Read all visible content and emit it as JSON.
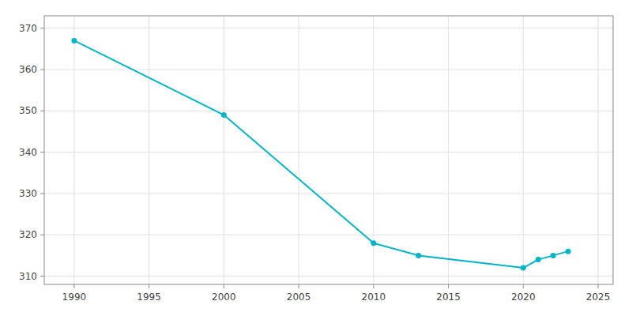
{
  "chart_data": {
    "type": "line",
    "x": [
      1990,
      2000,
      2010,
      2013,
      2020,
      2021,
      2022,
      2023
    ],
    "values": [
      367,
      349,
      318,
      315,
      312,
      314,
      315,
      316
    ],
    "color": "#00b5c8",
    "marker": "circle",
    "xlim": [
      1988,
      2026
    ],
    "ylim": [
      308,
      373
    ],
    "xticks": [
      1990,
      1995,
      2000,
      2005,
      2010,
      2015,
      2020,
      2025
    ],
    "yticks": [
      310,
      320,
      330,
      340,
      350,
      360,
      370
    ],
    "grid": true
  }
}
